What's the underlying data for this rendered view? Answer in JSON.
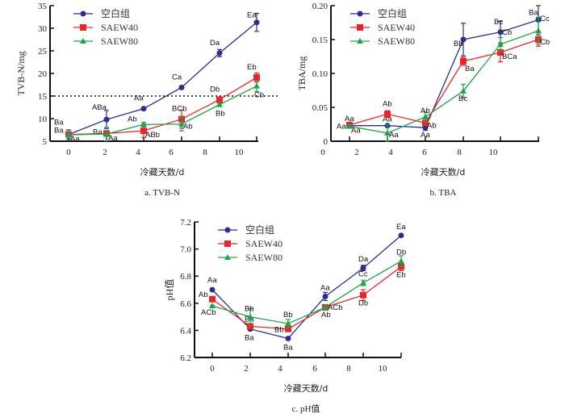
{
  "colors": {
    "blank": "#2b2f8f",
    "saew40": "#e8262a",
    "saew80": "#1fa34a"
  },
  "chart_data": [
    {
      "id": "tvbn",
      "type": "line",
      "caption": "a.  TVB-N",
      "xlabel": "冷藏天数/d",
      "ylabel": "TVB-N/mg",
      "ylim": [
        5,
        35
      ],
      "yticks": [
        "5",
        "10",
        "15",
        "20",
        "25",
        "30",
        "35"
      ],
      "xtick_labels": [
        "0",
        "2",
        "4",
        "6",
        "8",
        "10"
      ],
      "x": [
        0,
        2.2,
        4.4,
        6.6,
        8.8,
        11
      ],
      "reference_line": 15,
      "legend": [
        "空白组",
        "SAEW40",
        "SAEW80"
      ],
      "legend_position": "top-left",
      "series": [
        {
          "name": "空白组",
          "values": [
            6.5,
            9.8,
            12.2,
            16.9,
            24.5,
            31.3
          ],
          "errors": [
            1.0,
            2.0,
            0.3,
            0.3,
            0.8,
            2.0
          ],
          "labels": [
            "Ba",
            "ABa",
            "Aa",
            "Ca",
            "Da",
            "Ea"
          ]
        },
        {
          "name": "SAEW40",
          "values": [
            6.5,
            6.7,
            7.3,
            9.9,
            14.2,
            19.1
          ],
          "errors": [
            0.3,
            0.3,
            1.5,
            2.0,
            0.5,
            1.0
          ],
          "labels": [
            "Ba",
            "Ba",
            "ABb",
            "BCb",
            "Db",
            "Eb"
          ]
        },
        {
          "name": "SAEW80",
          "values": [
            6.4,
            6.6,
            8.7,
            8.8,
            13.1,
            17.2
          ],
          "errors": [
            0.5,
            1.5,
            0.5,
            1.5,
            0.3,
            1.2
          ],
          "labels": [
            "Aa",
            "Aa",
            "Ab",
            "Ab",
            "Bb",
            "Cb"
          ]
        }
      ]
    },
    {
      "id": "tba",
      "type": "line",
      "caption": "b.  TBA",
      "xlabel": "冷藏天数/d",
      "ylabel": "TBA/mg",
      "ylim": [
        0,
        0.2
      ],
      "yticks": [
        "0",
        "0.05",
        "0.10",
        "0.15",
        "0.20"
      ],
      "xtick_labels": [
        "0",
        "2",
        "4",
        "6",
        "8",
        "10"
      ],
      "x": [
        0,
        2.2,
        4.4,
        6.6,
        8.8,
        11
      ],
      "legend": [
        "空白组",
        "SAEW40",
        "SAEW80"
      ],
      "legend_position": "top-left",
      "series": [
        {
          "name": "空白组",
          "values": [
            0.023,
            0.023,
            0.02,
            0.15,
            0.161,
            0.179
          ],
          "errors": [
            0.002,
            0.002,
            0.004,
            0.024,
            0.016,
            0.022
          ],
          "labels": [
            "Aa",
            "Aa",
            "Aa",
            "Bb",
            "Bc",
            "Ba"
          ]
        },
        {
          "name": "SAEW40",
          "values": [
            0.024,
            0.04,
            0.027,
            0.118,
            0.131,
            0.15
          ],
          "errors": [
            0.002,
            0.005,
            0.003,
            0.006,
            0.014,
            0.01
          ],
          "labels": [
            "Aa",
            "Ab",
            "Ab",
            "Ba",
            "BCa",
            "Cb"
          ]
        },
        {
          "name": "SAEW80",
          "values": [
            0.022,
            0.012,
            0.036,
            0.074,
            0.143,
            0.163
          ],
          "errors": [
            0.002,
            0.013,
            0.007,
            0.01,
            0.01,
            0.02
          ],
          "labels": [
            "Aa",
            "Aa",
            "Ab",
            "Bc",
            "Cb",
            "Cc"
          ]
        }
      ]
    },
    {
      "id": "ph",
      "type": "line",
      "caption": "c.  pH值",
      "xlabel": "冷藏天数/d",
      "ylabel": "pH值",
      "ylim": [
        6.2,
        7.2
      ],
      "yticks": [
        "6.2",
        "6.4",
        "6.6",
        "6.8",
        "7.0",
        "7.2"
      ],
      "xtick_labels": [
        "0",
        "2",
        "4",
        "6",
        "8",
        "10"
      ],
      "x": [
        0,
        2.2,
        4.4,
        6.6,
        8.8,
        11
      ],
      "legend": [
        "空白组",
        "SAEW40",
        "SAEW80"
      ],
      "legend_position": "top-left",
      "series": [
        {
          "name": "空白组",
          "values": [
            6.7,
            6.41,
            6.34,
            6.65,
            6.86,
            7.1
          ],
          "errors": [
            0.005,
            0.005,
            0.005,
            0.03,
            0.02,
            0.005
          ],
          "labels": [
            "Aa",
            "Ba",
            "Ba",
            "Aa",
            "Da",
            "Ea"
          ]
        },
        {
          "name": "SAEW40",
          "values": [
            6.63,
            6.43,
            6.41,
            6.57,
            6.66,
            6.87
          ],
          "errors": [
            0.005,
            0.005,
            0.01,
            0.005,
            0.04,
            0.03
          ],
          "labels": [
            "Ab",
            "Ba",
            "Bb",
            "Ab",
            "Db",
            "Eb"
          ]
        },
        {
          "name": "SAEW80",
          "values": [
            6.58,
            6.5,
            6.45,
            6.57,
            6.75,
            6.91
          ],
          "errors": [
            0.005,
            0.06,
            0.03,
            0.005,
            0.02,
            0.04
          ],
          "labels": [
            "ACb",
            "Bb",
            "Bb",
            "ACb",
            "Cc",
            "Db"
          ]
        }
      ]
    }
  ]
}
